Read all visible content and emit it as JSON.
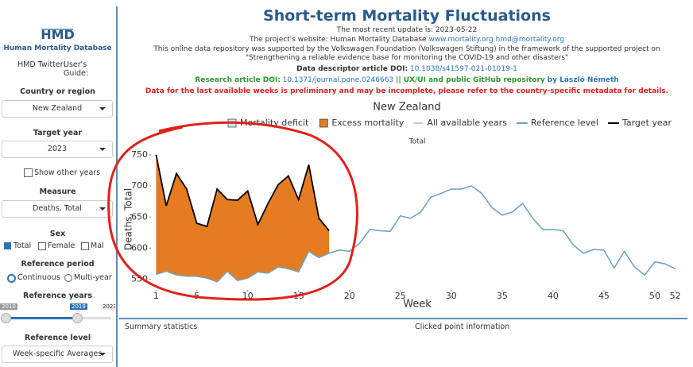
{
  "sidebar": {
    "logo": "HMD",
    "logo_caption": "Human Mortality Database",
    "twitter": "HMD Twitter:",
    "guide": "User's Guide:",
    "country_label": "Country or region",
    "country": "New Zealand",
    "target_year_label": "Target year",
    "target_year": "2023",
    "show_other": "Show other years",
    "measure_label": "Measure",
    "measure": "Deaths, Total",
    "sex_label": "Sex",
    "sex_options": [
      "Total",
      "Female",
      "Mal"
    ],
    "reference_period_label": "Reference period",
    "reference_period_options": [
      "Continuous",
      "Multi-year"
    ],
    "reference_years_label": "Reference years",
    "slider": {
      "min": "2010",
      "from": "2010",
      "to": "2019",
      "max": "2023"
    },
    "reference_level_label": "Reference level",
    "reference_level": "Week-specific Averages"
  },
  "header": {
    "title": "Short-term Mortality Fluctuations",
    "update": "The most recent update is: 2023-05-22",
    "website": "The project's website: Human Mortality Database",
    "website_link": "www.mortality.org",
    "email": "hmd@mortality.org",
    "support": "This online data repository was supported by the Volkswagen Foundation (Volkswagen Stiftung) in the framework of the supported project on \"Strengthening a reliable evidence base for monitoring the COVID-19 and other disasters\"",
    "descriptor_label": "Data descriptor article DOI:",
    "descriptor_doi": "10.1038/s41597-021-01019-1",
    "research_label": "Research article DOI:",
    "research_doi": "10.1371/journal.pone.0246663",
    "repo": "|| UX/UI and public GitHub repository",
    "author": "by László Németh",
    "warning": "Data for the last available weeks is preliminary and may be incomplete, please refer to the country-specific metadata for details."
  },
  "chart_data": {
    "type": "line",
    "title": "New Zealand",
    "subtitle": "Total",
    "x_label": "Week",
    "y_label": "Deaths, Total",
    "legend": [
      {
        "name": "Mortality deficit",
        "color": "#cfe7f1"
      },
      {
        "name": "Excess mortality",
        "color": "#e57c22"
      },
      {
        "name": "All available years",
        "color": "#cccccc"
      }
    ],
    "x": [
      1,
      2,
      3,
      4,
      5,
      6,
      7,
      8,
      9,
      10,
      11,
      12,
      13,
      14,
      15,
      16,
      17,
      18,
      19,
      20,
      21,
      22,
      23,
      24,
      25,
      26,
      27,
      28,
      29,
      30,
      31,
      32,
      33,
      34,
      35,
      36,
      37,
      38,
      39,
      40,
      41,
      42,
      43,
      44,
      45,
      46,
      47,
      48,
      49,
      50,
      51,
      52
    ],
    "series": [
      {
        "name": "Reference level",
        "color": "#6a9fc0",
        "values": [
          558,
          563,
          557,
          555,
          555,
          552,
          546,
          563,
          548,
          552,
          562,
          560,
          570,
          567,
          562,
          595,
          585,
          592,
          597,
          595,
          608,
          630,
          628,
          627,
          652,
          648,
          658,
          682,
          688,
          695,
          695,
          700,
          688,
          665,
          653,
          658,
          672,
          648,
          630,
          630,
          628,
          605,
          592,
          598,
          597,
          568,
          595,
          570,
          557,
          578,
          575,
          567
        ]
      },
      {
        "name": "Target year",
        "color": "#000000",
        "values": [
          750,
          668,
          720,
          695,
          640,
          635,
          695,
          678,
          677,
          692,
          638,
          672,
          702,
          716,
          678,
          734,
          648,
          628,
          null,
          null,
          null,
          null,
          null,
          null,
          null,
          null,
          null,
          null,
          null,
          null,
          null,
          null,
          null,
          null,
          null,
          null,
          null,
          null,
          null,
          null,
          null,
          null,
          null,
          null,
          null,
          null,
          null,
          null,
          null,
          null,
          null,
          null
        ]
      }
    ],
    "xlim": [
      0.5,
      52.5
    ],
    "xticks": [
      1,
      5,
      10,
      15,
      20,
      25,
      30,
      35,
      40,
      45,
      50,
      52
    ],
    "ylim": [
      533,
      760
    ],
    "yticks": [
      550,
      600,
      650,
      700,
      750
    ]
  },
  "footer": {
    "summary": "Summary statistics",
    "clicked": "Clicked point information"
  }
}
